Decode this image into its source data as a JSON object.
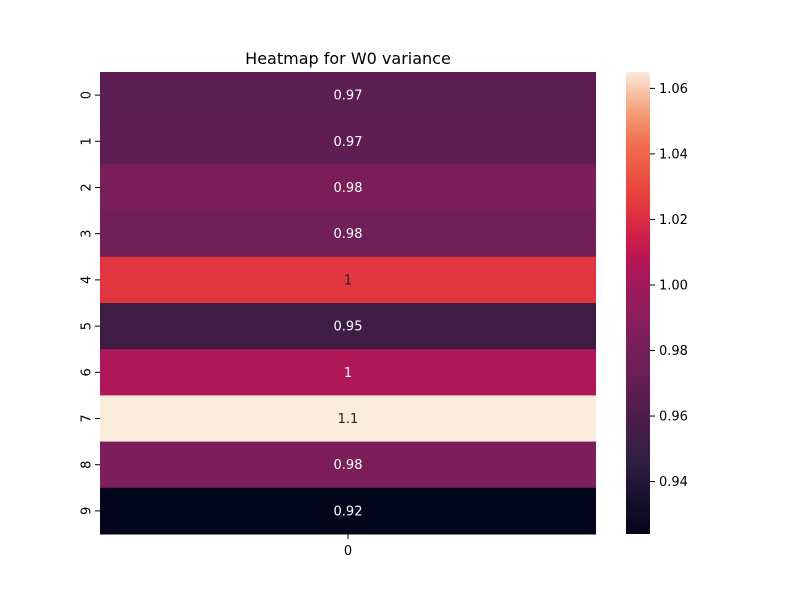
{
  "chart_data": {
    "type": "heatmap",
    "title": "Heatmap for W0 variance",
    "row_labels": [
      "0",
      "1",
      "2",
      "3",
      "4",
      "5",
      "6",
      "7",
      "8",
      "9"
    ],
    "col_labels": [
      "0"
    ],
    "values": [
      0.966,
      0.968,
      0.982,
      0.977,
      1.023,
      0.953,
      1.005,
      1.065,
      0.983,
      0.924
    ],
    "annotations": [
      "0.97",
      "0.97",
      "0.98",
      "0.98",
      "1",
      "0.95",
      "1",
      "1.1",
      "0.98",
      "0.92"
    ],
    "colorbar": {
      "min": 0.924,
      "max": 1.065,
      "ticks": [
        0.94,
        0.96,
        0.98,
        1.0,
        1.02,
        1.04,
        1.06
      ],
      "tick_labels": [
        "0.94",
        "0.96",
        "0.98",
        "1.00",
        "1.02",
        "1.04",
        "1.06"
      ],
      "colormap": "rocket"
    },
    "xlabel": "",
    "ylabel": ""
  }
}
